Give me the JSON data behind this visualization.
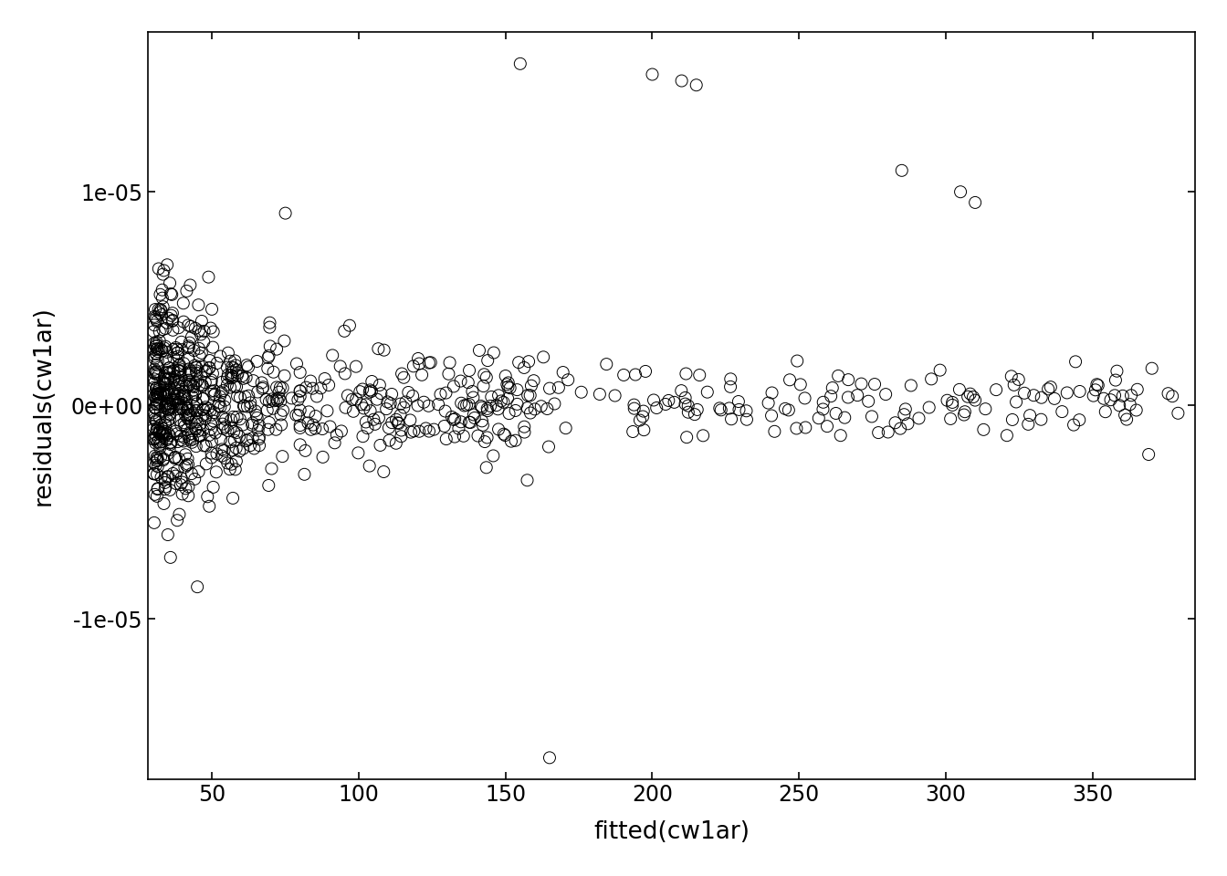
{
  "title": "",
  "xlabel": "fitted(cw1ar)",
  "ylabel": "residuals(cw1ar)",
  "xlim": [
    28,
    385
  ],
  "ylim": [
    -1.75e-05,
    1.75e-05
  ],
  "yticks": [
    -1e-05,
    0,
    1e-05
  ],
  "ytick_labels": [
    "-1e-05",
    "0e+00",
    "1e-05"
  ],
  "xticks": [
    50,
    100,
    150,
    200,
    250,
    300,
    350
  ],
  "background_color": "#ffffff",
  "marker_color": "black",
  "marker_facecolor": "none",
  "marker_size": 5,
  "seed": 42
}
